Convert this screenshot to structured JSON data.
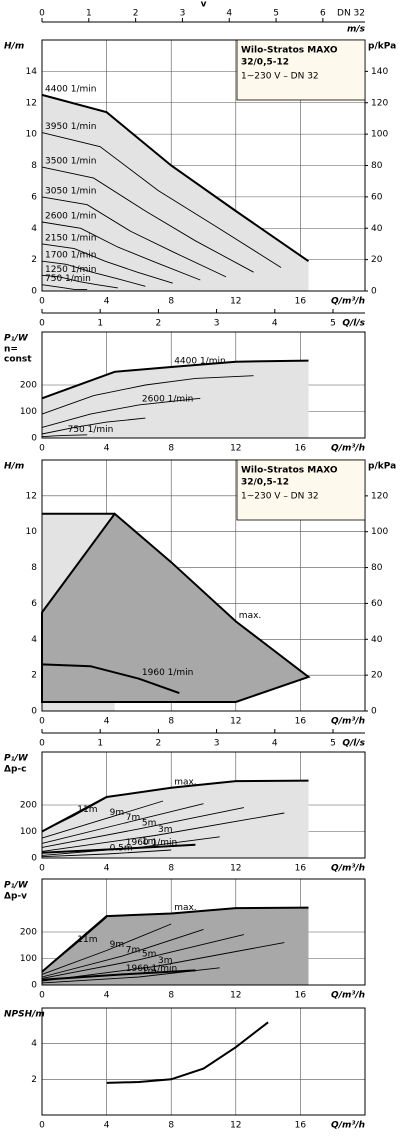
{
  "chart_data": [
    {
      "type": "line",
      "y_label": "H/m",
      "y2_label": "p/kPa",
      "x_label": "Q/m³/h",
      "x2_label": "v",
      "x2_unit": "m/s",
      "x2_note": "DN 32",
      "x3_label": "Q/l/s",
      "title_lines": [
        "Wilo-Stratos MAXO",
        "32/0,5-12"
      ],
      "subtitle": "1~230 V – DN 32",
      "xlim": [
        0,
        20
      ],
      "xticks": [
        0,
        4,
        8,
        12,
        16
      ],
      "ylim": [
        0,
        16
      ],
      "yticks": [
        0,
        2,
        4,
        6,
        8,
        10,
        12,
        14
      ],
      "y2lim": [
        0,
        160
      ],
      "y2ticks": [
        0,
        20,
        40,
        60,
        80,
        100,
        120,
        140
      ],
      "x2lim": [
        0,
        6.9
      ],
      "x2ticks": [
        0,
        1,
        2,
        3,
        4,
        5,
        6
      ],
      "x3lim": [
        0,
        5.55
      ],
      "x3ticks": [
        0,
        1,
        2,
        3,
        4,
        5
      ],
      "grid": true,
      "color": "#000000",
      "series": [
        {
          "name": "4400 1/min",
          "thick": true,
          "fill": "#e3e3e3",
          "x": [
            0,
            4,
            8,
            12,
            16.5
          ],
          "values": [
            12.5,
            11.4,
            8.0,
            5.1,
            1.9
          ]
        },
        {
          "name": "3950 1/min",
          "x": [
            0,
            3.6,
            7.2,
            10.8,
            14.8
          ],
          "values": [
            10.1,
            9.2,
            6.4,
            4.1,
            1.5
          ]
        },
        {
          "name": "3500 1/min",
          "x": [
            0,
            3.2,
            6.4,
            9.5,
            13.1
          ],
          "values": [
            7.9,
            7.2,
            5.1,
            3.2,
            1.2
          ]
        },
        {
          "name": "3050 1/min",
          "x": [
            0,
            2.8,
            5.5,
            8.3,
            11.4
          ],
          "values": [
            6.0,
            5.5,
            3.8,
            2.4,
            0.9
          ]
        },
        {
          "name": "2600 1/min",
          "x": [
            0,
            2.4,
            4.7,
            7.1,
            9.8
          ],
          "values": [
            4.4,
            4.0,
            2.8,
            1.8,
            0.7
          ]
        },
        {
          "name": "2150 1/min",
          "x": [
            0,
            2.0,
            3.9,
            5.9,
            8.1
          ],
          "values": [
            3.0,
            2.7,
            1.9,
            1.2,
            0.5
          ]
        },
        {
          "name": "1700 1/min",
          "x": [
            0,
            1.5,
            3.1,
            4.6,
            6.4
          ],
          "values": [
            1.9,
            1.7,
            1.2,
            0.8,
            0.3
          ]
        },
        {
          "name": "1250 1/min",
          "x": [
            0,
            1.1,
            2.3,
            3.4,
            4.7
          ],
          "values": [
            1.0,
            0.9,
            0.6,
            0.4,
            0.2
          ]
        },
        {
          "name": "750 1/min",
          "x": [
            0,
            0.7,
            1.4,
            2.0,
            2.8
          ],
          "values": [
            0.4,
            0.3,
            0.2,
            0.1,
            0.1
          ]
        }
      ]
    },
    {
      "type": "line",
      "y_label": "P₁/W",
      "y_sublabel": [
        "n=",
        "const"
      ],
      "x_label": "Q/m³/h",
      "xlim": [
        0,
        20
      ],
      "xticks": [
        0,
        4,
        8,
        12,
        16
      ],
      "ylim": [
        0,
        400
      ],
      "yticks": [
        0,
        100,
        200
      ],
      "grid": true,
      "color": "#000000",
      "series": [
        {
          "name": "4400 1/min",
          "thick": true,
          "fill": "#e3e3e3",
          "x": [
            0,
            4.5,
            8,
            12,
            16.5
          ],
          "values": [
            150,
            250,
            268,
            288,
            292
          ]
        },
        {
          "x": [
            0,
            3.2,
            6.4,
            9.5,
            13.1
          ],
          "values": [
            90,
            160,
            200,
            225,
            235
          ]
        },
        {
          "name": "2600 1/min",
          "x": [
            0,
            3,
            6,
            9.8
          ],
          "values": [
            40,
            90,
            125,
            150
          ]
        },
        {
          "x": [
            0,
            2,
            4,
            6.4
          ],
          "values": [
            15,
            40,
            60,
            75
          ]
        },
        {
          "name": "750 1/min",
          "x": [
            0,
            0.7,
            1.4,
            2.8
          ],
          "values": [
            5,
            8,
            10,
            12
          ]
        }
      ]
    },
    {
      "type": "line",
      "y_label": "H/m",
      "y2_label": "p/kPa",
      "x_label": "Q/m³/h",
      "x3_label": "Q/l/s",
      "title_lines": [
        "Wilo-Stratos MAXO",
        "32/0,5-12"
      ],
      "subtitle": "1~230 V – DN 32",
      "xlim": [
        0,
        20
      ],
      "xticks": [
        0,
        4,
        8,
        12,
        16
      ],
      "ylim": [
        0,
        14
      ],
      "yticks": [
        0,
        2,
        4,
        6,
        8,
        10,
        12
      ],
      "y2lim": [
        0,
        140
      ],
      "y2ticks": [
        0,
        20,
        40,
        60,
        80,
        100,
        120
      ],
      "x3lim": [
        0,
        5.55
      ],
      "x3ticks": [
        0,
        1,
        2,
        3,
        4,
        5
      ],
      "grid": true,
      "color": "#000000",
      "series": [
        {
          "thick": true,
          "fill": "#e3e3e3",
          "x": [
            0,
            4.5
          ],
          "values": [
            11,
            11
          ]
        },
        {
          "name": "max.",
          "thick": true,
          "closed": true,
          "fill": "#a8a8a8",
          "x": [
            0,
            4.5,
            8,
            12,
            16.5,
            12,
            0
          ],
          "values": [
            5.5,
            11,
            8.3,
            5,
            1.9,
            0.5,
            0.5
          ]
        },
        {
          "name": "1960 1/min",
          "thick": true,
          "x": [
            0,
            3,
            6,
            8.5
          ],
          "values": [
            2.6,
            2.5,
            1.8,
            1.0
          ]
        }
      ]
    },
    {
      "type": "line",
      "y_label": "P₁/W",
      "y_sublabel": [
        "Δp-c"
      ],
      "x_label": "Q/m³/h",
      "xlim": [
        0,
        20
      ],
      "xticks": [
        0,
        4,
        8,
        12,
        16
      ],
      "ylim": [
        0,
        400
      ],
      "yticks": [
        0,
        100,
        200
      ],
      "grid": true,
      "color": "#000000",
      "series": [
        {
          "name": "max.",
          "thick": true,
          "fill": "#e3e3e3",
          "x": [
            0,
            4,
            8,
            12,
            16.5
          ],
          "values": [
            100,
            230,
            265,
            290,
            292
          ]
        },
        {
          "name": "11m",
          "x": [
            0,
            2,
            4
          ],
          "values": [
            100,
            160,
            228
          ]
        },
        {
          "name": "9m",
          "x": [
            0,
            4,
            7.5
          ],
          "values": [
            75,
            150,
            215
          ]
        },
        {
          "name": "7m",
          "x": [
            0,
            5,
            10
          ],
          "values": [
            55,
            130,
            205
          ]
        },
        {
          "name": "5m",
          "x": [
            0,
            6,
            12.5
          ],
          "values": [
            40,
            110,
            190
          ]
        },
        {
          "name": "3m",
          "x": [
            0,
            7,
            15
          ],
          "values": [
            25,
            85,
            170
          ]
        },
        {
          "name": "1m",
          "x": [
            0,
            6,
            11
          ],
          "values": [
            10,
            40,
            80
          ]
        },
        {
          "name": "0.5m",
          "x": [
            0,
            4,
            8
          ],
          "values": [
            5,
            15,
            30
          ]
        },
        {
          "name": "1960 1/min",
          "thick": true,
          "x": [
            0,
            5,
            9.5
          ],
          "values": [
            20,
            35,
            50
          ]
        }
      ]
    },
    {
      "type": "line",
      "y_label": "P₁/W",
      "y_sublabel": [
        "Δp-v"
      ],
      "x_label": "Q/m³/h",
      "xlim": [
        0,
        20
      ],
      "xticks": [
        0,
        4,
        8,
        12,
        16
      ],
      "ylim": [
        0,
        400
      ],
      "yticks": [
        0,
        100,
        200
      ],
      "grid": true,
      "color": "#000000",
      "series": [
        {
          "name": "max.",
          "thick": true,
          "fill": "#a8a8a8",
          "x": [
            0,
            4,
            8,
            12,
            16.5
          ],
          "values": [
            50,
            260,
            270,
            290,
            292
          ]
        },
        {
          "name": "11m",
          "x": [
            0,
            2,
            4
          ],
          "values": [
            50,
            150,
            255
          ]
        },
        {
          "name": "9m",
          "x": [
            0,
            4,
            8
          ],
          "values": [
            40,
            130,
            230
          ]
        },
        {
          "name": "7m",
          "x": [
            0,
            5,
            10
          ],
          "values": [
            30,
            110,
            210
          ]
        },
        {
          "name": "5m",
          "x": [
            0,
            6,
            12.5
          ],
          "values": [
            25,
            95,
            190
          ]
        },
        {
          "name": "3m",
          "x": [
            0,
            7,
            15
          ],
          "values": [
            15,
            70,
            160
          ]
        },
        {
          "name": "1m",
          "x": [
            0,
            6,
            11
          ],
          "values": [
            8,
            30,
            65
          ]
        },
        {
          "name": "1960 1/min",
          "thick": true,
          "x": [
            0,
            5,
            9.5
          ],
          "values": [
            20,
            40,
            55
          ]
        }
      ]
    },
    {
      "type": "line",
      "y_label": "NPSH/m",
      "x_label": "Q/m³/h",
      "xlim": [
        0,
        20
      ],
      "xticks": [
        0,
        4,
        8,
        12,
        16
      ],
      "ylim": [
        0,
        6
      ],
      "yticks": [
        2,
        4
      ],
      "grid": true,
      "color": "#000000",
      "series": [
        {
          "thick": true,
          "x": [
            4,
            6,
            8,
            10,
            12,
            14
          ],
          "values": [
            1.8,
            1.85,
            2.0,
            2.6,
            3.8,
            5.2
          ]
        }
      ]
    }
  ]
}
